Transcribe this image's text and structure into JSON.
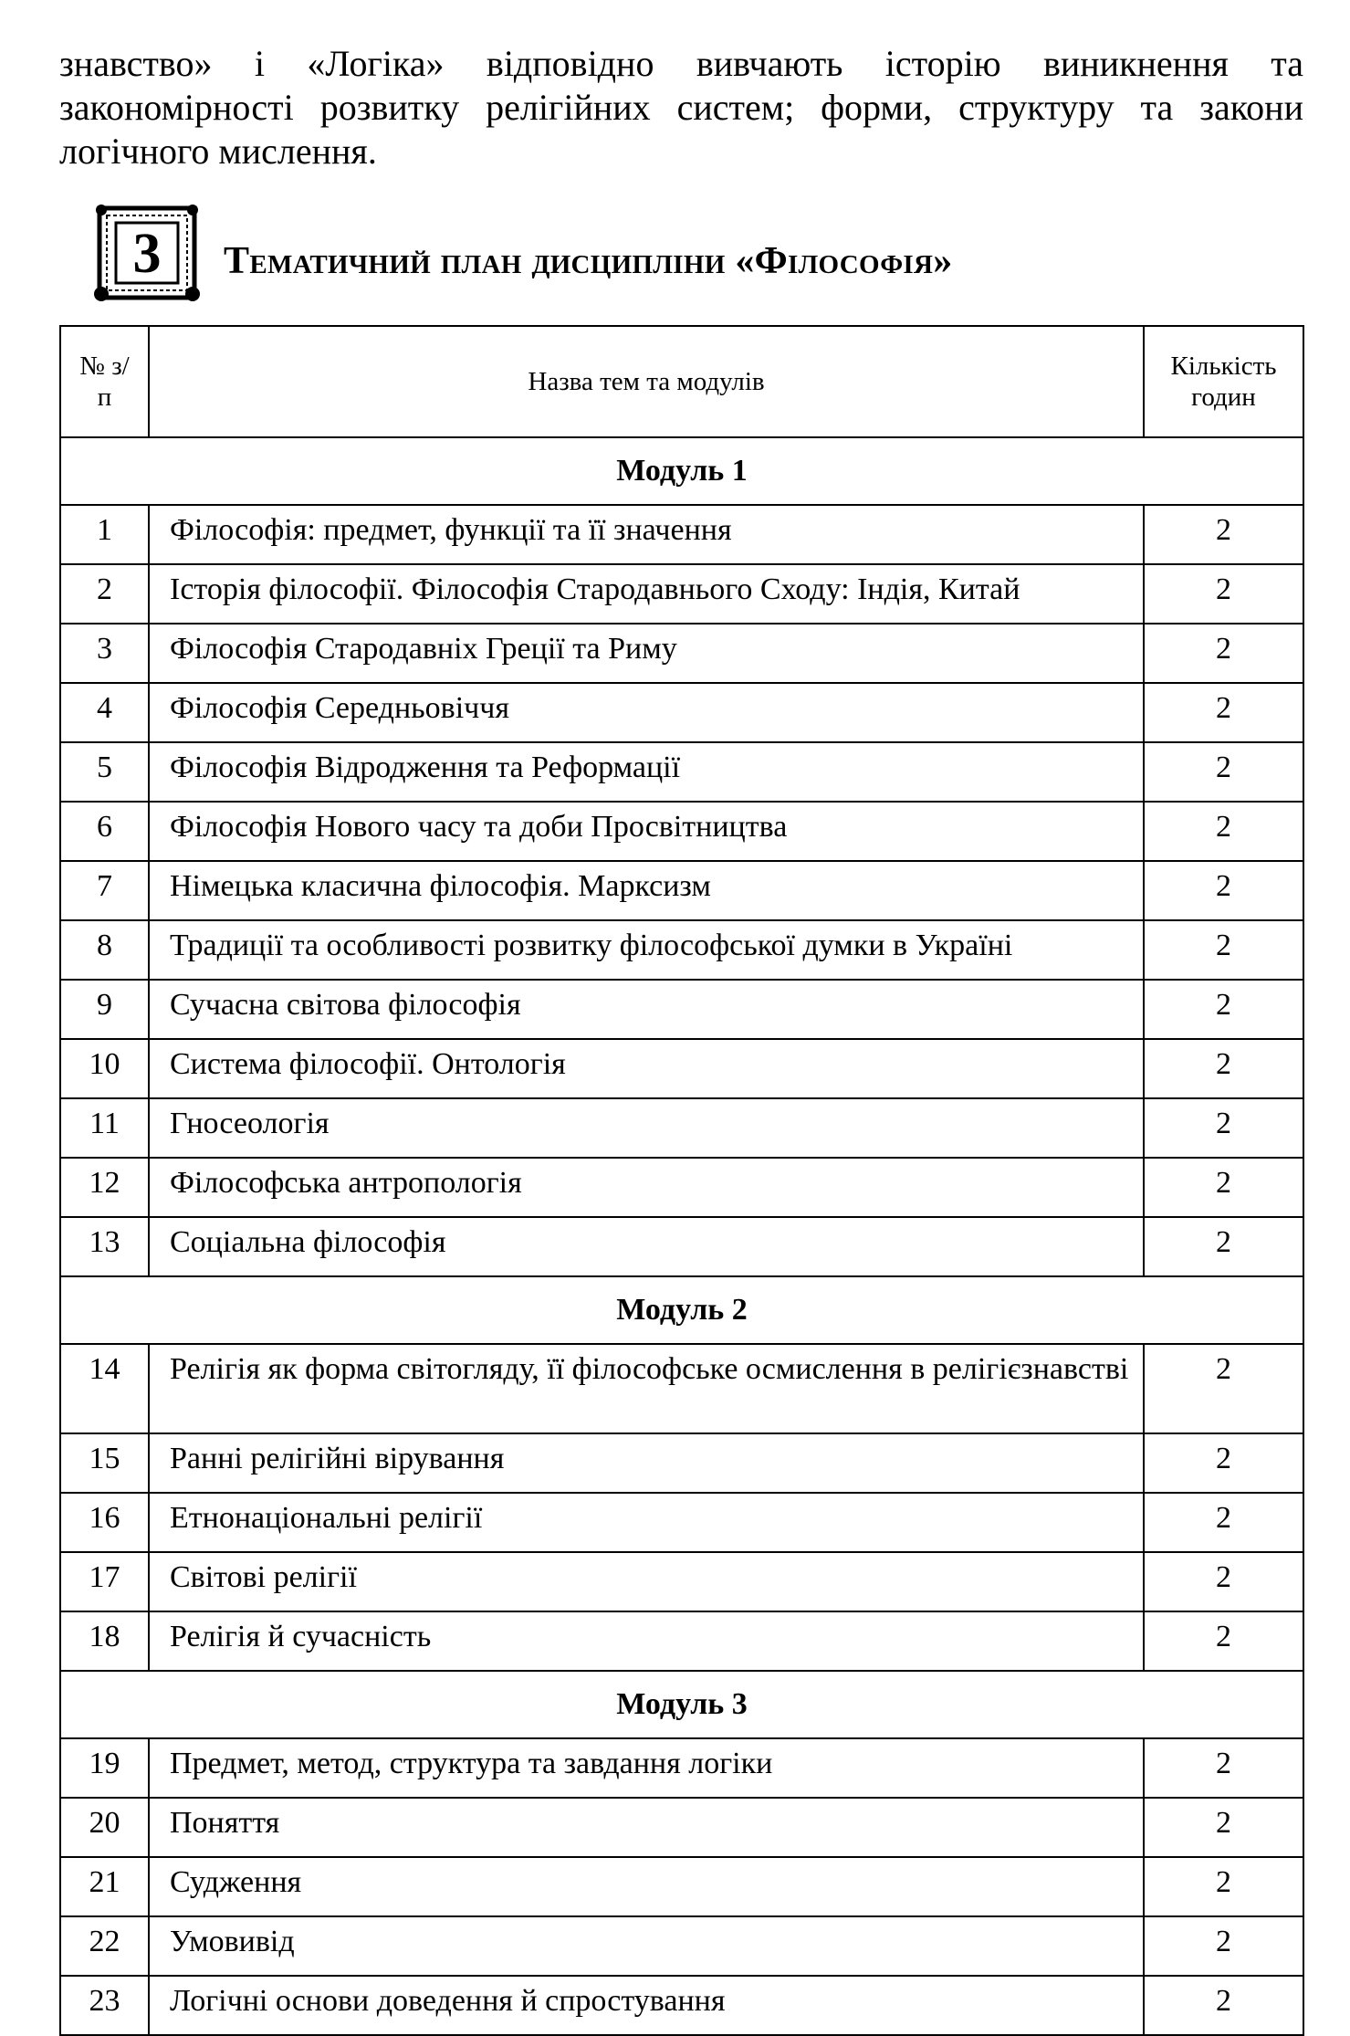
{
  "intro_text": "знавство» і «Логіка» відповідно вивчають історію виникнення та закономірності розвитку релігійних систем; форми, структуру та закони логічного мислення.",
  "section": {
    "number": "3",
    "title": "Тематичний план дисципліни «Філософія»"
  },
  "table": {
    "headers": {
      "number": "№ з/п",
      "name": "Назва тем та модулів",
      "hours": "Кількість годин"
    },
    "modules": [
      {
        "title": "Модуль 1",
        "rows": [
          {
            "n": "1",
            "topic": "Філософія: предмет, функції та її значення",
            "hours": "2"
          },
          {
            "n": "2",
            "topic": "Історія філософії. Філософія Стародавнього Сходу: Індія, Китай",
            "hours": "2"
          },
          {
            "n": "3",
            "topic": "Філософія Стародавніх Греції та Риму",
            "hours": "2"
          },
          {
            "n": "4",
            "topic": "Філософія Середньовіччя",
            "hours": "2"
          },
          {
            "n": "5",
            "topic": "Філософія Відродження та Реформації",
            "hours": "2"
          },
          {
            "n": "6",
            "topic": "Філософія Нового часу та доби Просвітництва",
            "hours": "2"
          },
          {
            "n": "7",
            "topic": "Німецька класична філософія. Марксизм",
            "hours": "2"
          },
          {
            "n": "8",
            "topic": "Традиції та особливості розвитку філософської думки в Україні",
            "hours": "2"
          },
          {
            "n": "9",
            "topic": "Сучасна світова філософія",
            "hours": "2"
          },
          {
            "n": "10",
            "topic": "Система філософії. Онтологія",
            "hours": "2"
          },
          {
            "n": "11",
            "topic": "Гносеологія",
            "hours": "2"
          },
          {
            "n": "12",
            "topic": "Філософська антропологія",
            "hours": "2"
          },
          {
            "n": "13",
            "topic": "Соціальна філософія",
            "hours": "2"
          }
        ]
      },
      {
        "title": "Модуль 2",
        "rows": [
          {
            "n": "14",
            "topic": "Релігія як форма світогляду, її філософське осмислення в релігієзнавстві",
            "hours": "2"
          },
          {
            "n": "15",
            "topic": "Ранні релігійні вірування",
            "hours": "2"
          },
          {
            "n": "16",
            "topic": "Етнонаціональні релігії",
            "hours": "2"
          },
          {
            "n": "17",
            "topic": "Світові релігії",
            "hours": "2"
          },
          {
            "n": "18",
            "topic": "Релігія й сучасність",
            "hours": "2"
          }
        ]
      },
      {
        "title": "Модуль 3",
        "rows": [
          {
            "n": "19",
            "topic": "Предмет, метод, структура та завдання логіки",
            "hours": "2"
          },
          {
            "n": "20",
            "topic": "Поняття",
            "hours": "2"
          },
          {
            "n": "21",
            "topic": "Судження",
            "hours": "2"
          },
          {
            "n": "22",
            "topic": "Умовивід",
            "hours": "2"
          },
          {
            "n": "23",
            "topic": "Логічні основи доведення й спростування",
            "hours": "2"
          }
        ]
      }
    ]
  }
}
